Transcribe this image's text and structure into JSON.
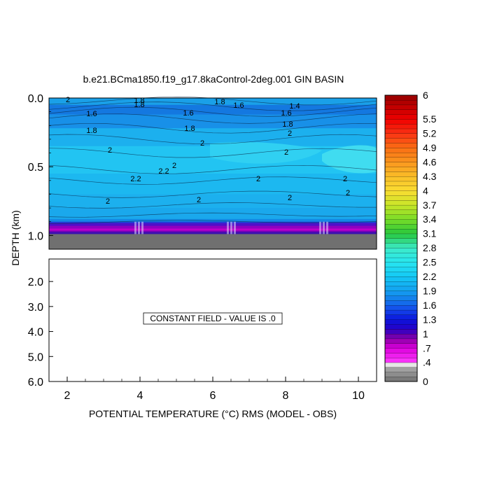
{
  "chart_data": {
    "type": "heatmap",
    "title": "b.e21.BCma1850.f19_g17.8kaControl-2deg.001 GIN BASIN",
    "xlabel": "POTENTIAL TEMPERATURE (°C) RMS (MODEL - OBS)",
    "ylabel": "DEPTH (km)",
    "x": {
      "min": 1.5,
      "max": 10.5,
      "ticks": [
        "2",
        "4",
        "6",
        "8",
        "10"
      ]
    },
    "upper_panel": {
      "ylim": [
        0.0,
        1.1
      ],
      "yticks": [
        "0.0",
        "0.5",
        "1.0"
      ],
      "contour_labels": [
        "2",
        "1.8",
        "1.8",
        "1.8",
        "1.6",
        "1.4",
        "1.6",
        "1.6",
        "1.6",
        "1.8",
        "1.8",
        "1.8",
        "2",
        "2",
        "2",
        "2",
        "2.2",
        "2",
        "2",
        "2",
        "2.2",
        "2",
        "2",
        "2",
        "2"
      ],
      "note": "RMS values mostly between 1.6 and 2.5 above ~0.9 km; sharp drop below ~0.9 km"
    },
    "lower_panel": {
      "ylim": [
        1.1,
        6.0
      ],
      "yticks": [
        "2.0",
        "3.0",
        "4.0",
        "5.0",
        "6.0"
      ],
      "annotation": "CONSTANT FIELD - VALUE IS .0"
    },
    "colorbar": {
      "min": 0,
      "max": 6,
      "step": 0.1,
      "labels": [
        "6",
        "5.5",
        "5.2",
        "4.9",
        "4.6",
        "4.3",
        "4",
        "3.7",
        "3.4",
        "3.1",
        "2.8",
        "2.5",
        "2.2",
        "1.9",
        "1.6",
        "1.3",
        "1",
        ".7",
        ".4",
        "0"
      ],
      "label_values": [
        6,
        5.5,
        5.2,
        4.9,
        4.6,
        4.3,
        4,
        3.7,
        3.4,
        3.1,
        2.8,
        2.5,
        2.2,
        1.9,
        1.6,
        1.3,
        1,
        0.7,
        0.4,
        0
      ]
    }
  }
}
